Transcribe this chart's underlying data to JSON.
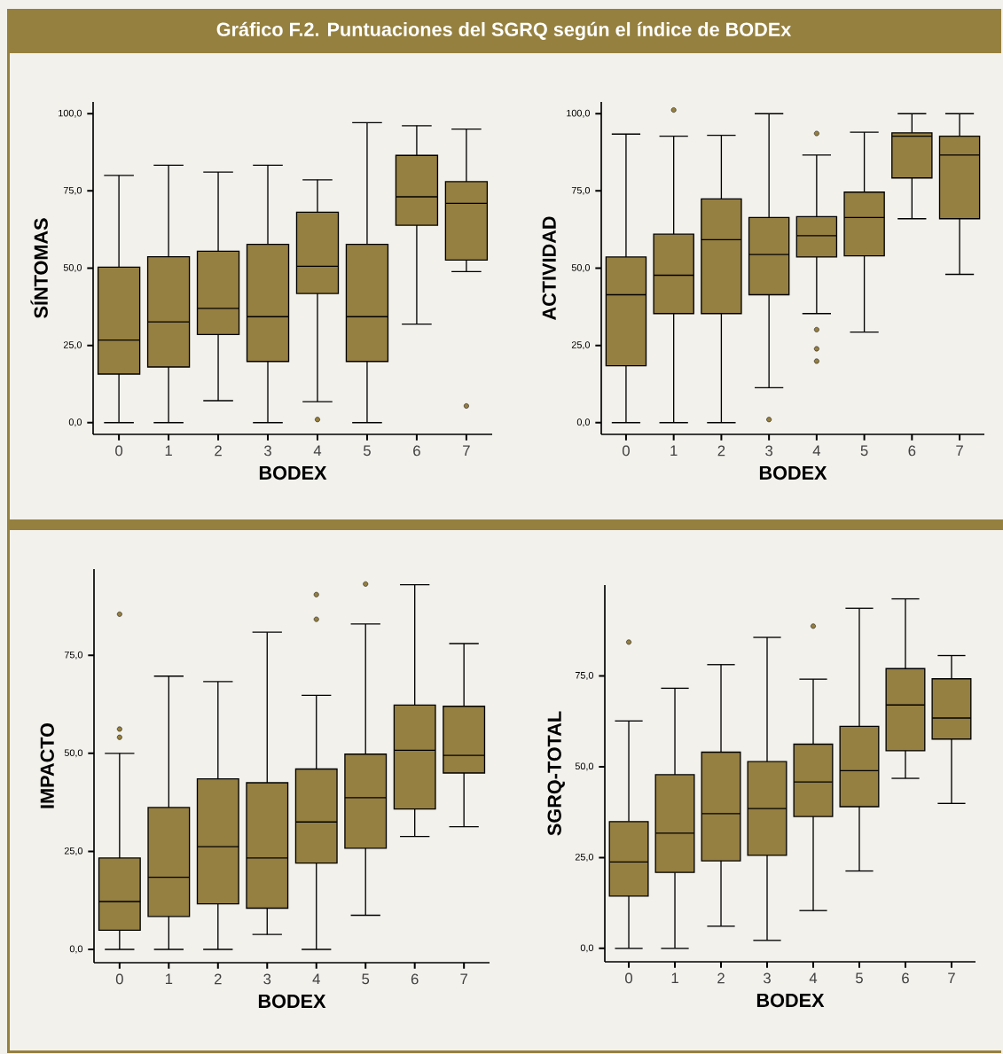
{
  "chart_data": [
    {
      "type": "box",
      "title": "Gráfico F.2. Puntuaciones del SGRQ según el índice de BODEx",
      "categories": [
        "0",
        "1",
        "2",
        "3",
        "4",
        "5",
        "6",
        "7"
      ],
      "xlabel": "BODEX",
      "ylabel": "SÍNTOMAS",
      "color": "#957f41",
      "ylim": [
        -3.8,
        103.8
      ],
      "yticks": [
        {
          "value": 0,
          "label": "0,0"
        },
        {
          "value": 25,
          "label": "25,0"
        },
        {
          "value": 50,
          "label": "50,0"
        },
        {
          "value": 75,
          "label": "75,0"
        },
        {
          "value": 100,
          "label": "100,0"
        }
      ],
      "boxes": [
        {
          "low": 0,
          "q1": 15.7,
          "median": 26.7,
          "q3": 50.3,
          "high": 80
        },
        {
          "low": 0,
          "q1": 18.0,
          "median": 32.6,
          "q3": 53.7,
          "high": 83.3
        },
        {
          "low": 7.1,
          "q1": 28.5,
          "median": 37.0,
          "q3": 55.5,
          "high": 81.1
        },
        {
          "low": 0,
          "q1": 19.8,
          "median": 34.3,
          "q3": 57.7,
          "high": 83.3
        },
        {
          "low": 6.8,
          "q1": 41.8,
          "median": 50.6,
          "q3": 68.1,
          "high": 78.6,
          "outliers": [
            1.0
          ]
        },
        {
          "low": 0,
          "q1": 19.8,
          "median": 34.3,
          "q3": 57.7,
          "high": 97.1
        },
        {
          "low": 31.9,
          "q1": 63.9,
          "median": 73.1,
          "q3": 86.5,
          "high": 96.1
        },
        {
          "low": 48.9,
          "q1": 52.6,
          "median": 71.0,
          "q3": 78.0,
          "high": 95.0,
          "outliers": [
            5.4
          ]
        }
      ]
    },
    {
      "type": "box",
      "categories": [
        "0",
        "1",
        "2",
        "3",
        "4",
        "5",
        "6",
        "7"
      ],
      "xlabel": "BODEX",
      "ylabel": "ACTIVIDAD",
      "color": "#957f41",
      "ylim": [
        -3.8,
        103.8
      ],
      "yticks": [
        {
          "value": 0,
          "label": "0,0"
        },
        {
          "value": 25,
          "label": "25,0"
        },
        {
          "value": 50,
          "label": "50,0"
        },
        {
          "value": 75,
          "label": "75,0"
        },
        {
          "value": 100,
          "label": "100,0"
        }
      ],
      "boxes": [
        {
          "low": 0,
          "q1": 18.4,
          "median": 41.4,
          "q3": 53.6,
          "high": 93.4
        },
        {
          "low": 0,
          "q1": 35.3,
          "median": 47.7,
          "q3": 61.0,
          "high": 92.7,
          "outliers": [
            101.2
          ]
        },
        {
          "low": 0,
          "q1": 35.3,
          "median": 59.2,
          "q3": 72.4,
          "high": 93.0
        },
        {
          "low": 11.3,
          "q1": 41.4,
          "median": 54.4,
          "q3": 66.4,
          "high": 100,
          "outliers": [
            1.0
          ]
        },
        {
          "low": 35.3,
          "q1": 53.6,
          "median": 60.5,
          "q3": 66.7,
          "high": 86.6,
          "outliers": [
            93.6,
            30.1,
            23.9,
            19.9
          ]
        },
        {
          "low": 29.3,
          "q1": 54.0,
          "median": 66.4,
          "q3": 74.6,
          "high": 94.0
        },
        {
          "low": 66.0,
          "q1": 79.2,
          "median": 92.7,
          "q3": 93.8,
          "high": 100
        },
        {
          "low": 48.0,
          "q1": 66.0,
          "median": 86.6,
          "q3": 92.7,
          "high": 100
        }
      ]
    },
    {
      "type": "box",
      "categories": [
        "0",
        "1",
        "2",
        "3",
        "4",
        "5",
        "6",
        "7"
      ],
      "xlabel": "BODEX",
      "ylabel": "IMPACTO",
      "color": "#957f41",
      "ylim": [
        -3.4,
        97
      ],
      "yticks": [
        {
          "value": 0,
          "label": "0,0"
        },
        {
          "value": 25,
          "label": "25,0"
        },
        {
          "value": 50,
          "label": "50,0"
        },
        {
          "value": 75,
          "label": "75,0"
        }
      ],
      "boxes": [
        {
          "low": 0,
          "q1": 4.9,
          "median": 12.2,
          "q3": 23.3,
          "high": 50,
          "outliers": [
            56.2,
            54.1,
            85.5
          ]
        },
        {
          "low": 0,
          "q1": 8.4,
          "median": 18.4,
          "q3": 36.2,
          "high": 69.7
        },
        {
          "low": 0,
          "q1": 11.6,
          "median": 26.2,
          "q3": 43.5,
          "high": 68.3
        },
        {
          "low": 3.8,
          "q1": 10.5,
          "median": 23.3,
          "q3": 42.5,
          "high": 80.9
        },
        {
          "low": 0,
          "q1": 22.0,
          "median": 32.5,
          "q3": 46.0,
          "high": 64.8,
          "outliers": [
            90.5,
            84.2
          ]
        },
        {
          "low": 8.7,
          "q1": 25.8,
          "median": 38.7,
          "q3": 49.8,
          "high": 83.0,
          "outliers": [
            93.2
          ]
        },
        {
          "low": 28.8,
          "q1": 35.8,
          "median": 50.8,
          "q3": 62.3,
          "high": 93.0
        },
        {
          "low": 31.3,
          "q1": 45.0,
          "median": 49.5,
          "q3": 62.0,
          "high": 78.0
        }
      ]
    },
    {
      "type": "box",
      "categories": [
        "0",
        "1",
        "2",
        "3",
        "4",
        "5",
        "6",
        "7"
      ],
      "xlabel": "BODEX",
      "ylabel": "SGRQ-TOTAL",
      "color": "#957f41",
      "ylim": [
        -3.7,
        100
      ],
      "yticks": [
        {
          "value": 0,
          "label": "0,0"
        },
        {
          "value": 25,
          "label": "25,0"
        },
        {
          "value": 50,
          "label": "50,0"
        },
        {
          "value": 75,
          "label": "75,0"
        }
      ],
      "boxes": [
        {
          "low": 0,
          "q1": 14.4,
          "median": 23.8,
          "q3": 34.9,
          "high": 62.6,
          "outliers": [
            84.3
          ]
        },
        {
          "low": 0,
          "q1": 20.9,
          "median": 31.7,
          "q3": 47.8,
          "high": 71.6
        },
        {
          "low": 6.1,
          "q1": 24.1,
          "median": 37.1,
          "q3": 54.0,
          "high": 78.1
        },
        {
          "low": 2.2,
          "q1": 25.6,
          "median": 38.5,
          "q3": 51.4,
          "high": 85.6
        },
        {
          "low": 10.4,
          "q1": 36.3,
          "median": 45.8,
          "q3": 56.2,
          "high": 74.1,
          "outliers": [
            88.7
          ]
        },
        {
          "low": 21.3,
          "q1": 39.0,
          "median": 48.9,
          "q3": 61.1,
          "high": 93.6
        },
        {
          "low": 46.8,
          "q1": 54.4,
          "median": 67.0,
          "q3": 77.0,
          "high": 96.2
        },
        {
          "low": 39.9,
          "q1": 57.6,
          "median": 63.4,
          "q3": 74.2,
          "high": 80.6
        }
      ]
    }
  ]
}
